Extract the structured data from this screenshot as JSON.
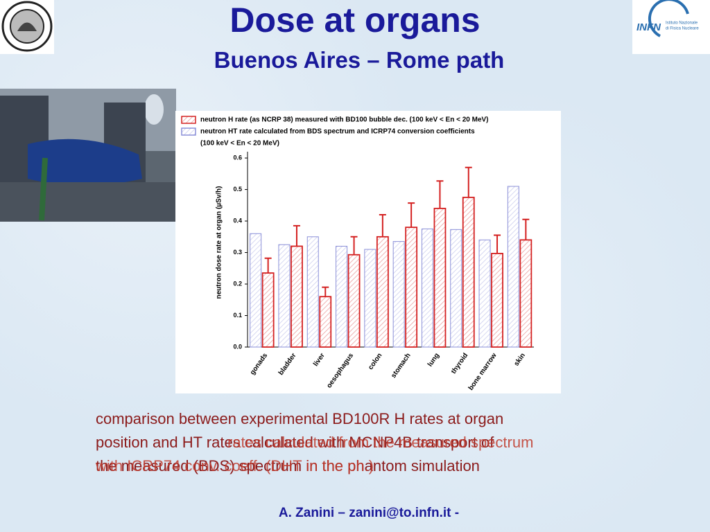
{
  "title": "Dose at organs",
  "subtitle": "Buenos Aires – Rome path",
  "logo": {
    "mark": "INFN",
    "name_line1": "Istituto Nazionale",
    "name_line2": "di Fisica Nucleare"
  },
  "caption": {
    "lines": [
      "comparison between experimental BD100R H rates at organ",
      "position and HT rates calculated with MCNP4B transport of",
      "the measured (BDS) spectrum in the phantom simulation"
    ]
  },
  "caption_overlay": {
    "lines": [
      "rates calculated from the measured spectrum",
      "with ICRP74 conv. coeff. (DHT in the ph.)"
    ]
  },
  "footer": "A. Zanini – zanini@to.infn.it -",
  "chart_data": {
    "type": "bar",
    "y_label": "neutron dose rate at organ (µSv/h)",
    "categories": [
      "gonads",
      "bladder",
      "liver",
      "oesophagus",
      "colon",
      "stomach",
      "lung",
      "thyroid",
      "bone marrow",
      "skin"
    ],
    "series": [
      {
        "name": "neutron HT rate calculated from BDS spectrum and ICRP74 conversion coefficients",
        "name_line2": "(100 keV < En < 20 MeV)",
        "color": "#8a8fd8",
        "hatch": true,
        "values": [
          0.36,
          0.325,
          0.35,
          0.32,
          0.31,
          0.335,
          0.375,
          0.373,
          0.34,
          0.51
        ]
      },
      {
        "name": "neutron H rate (as NCRP 38) measured with BD100 bubble dec. (100 keV < En < 20 MeV)",
        "color": "#d42020",
        "hatch": true,
        "values": [
          0.235,
          0.32,
          0.16,
          0.293,
          0.35,
          0.38,
          0.44,
          0.475,
          0.297,
          0.34
        ],
        "errors": [
          0.047,
          0.065,
          0.03,
          0.057,
          0.07,
          0.077,
          0.087,
          0.095,
          0.058,
          0.065
        ]
      }
    ],
    "ylim": [
      0,
      0.62
    ],
    "yticks": [
      {
        "value": 0,
        "label": "0.0"
      },
      0.1,
      0.2,
      0.3,
      0.4,
      0.5,
      0.6
    ]
  }
}
